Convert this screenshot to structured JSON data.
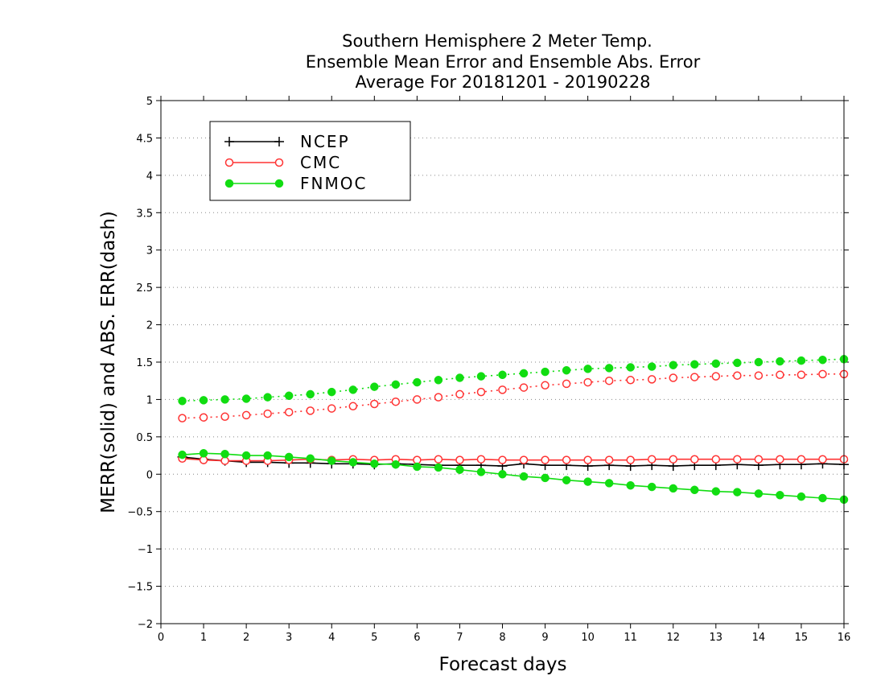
{
  "chart_data": {
    "type": "line",
    "title": [
      "Southern Hemisphere 2 Meter Temp.",
      "Ensemble Mean Error and Ensemble Abs. Error",
      "Average For 20181201 - 20190228"
    ],
    "xlabel": "Forecast days",
    "ylabel": "MERR(solid) and ABS. ERR(dash)",
    "xlim": [
      0,
      16
    ],
    "ylim": [
      -2,
      5
    ],
    "x_ticks": [
      0,
      1,
      2,
      3,
      4,
      5,
      6,
      7,
      8,
      9,
      10,
      11,
      12,
      13,
      14,
      15,
      16
    ],
    "y_ticks": [
      -2,
      -1.5,
      -1,
      -0.5,
      0,
      0.5,
      1,
      1.5,
      2,
      2.5,
      3,
      3.5,
      4,
      4.5,
      5
    ],
    "grid": "horizontal dotted",
    "legend_position": "top-left",
    "x": [
      0.5,
      1,
      1.5,
      2,
      2.5,
      3,
      3.5,
      4,
      4.5,
      5,
      5.5,
      6,
      6.5,
      7,
      7.5,
      8,
      8.5,
      9,
      9.5,
      10,
      10.5,
      11,
      11.5,
      12,
      12.5,
      13,
      13.5,
      14,
      14.5,
      15,
      15.5,
      16
    ],
    "series": [
      {
        "name": "NCEP",
        "color": "#000000",
        "marker": "plus",
        "merr": [
          0.23,
          0.2,
          0.18,
          0.16,
          0.16,
          0.15,
          0.15,
          0.14,
          0.14,
          0.13,
          0.14,
          0.13,
          0.12,
          0.12,
          0.12,
          0.11,
          0.14,
          0.12,
          0.12,
          0.11,
          0.12,
          0.11,
          0.12,
          0.11,
          0.12,
          0.12,
          0.13,
          0.12,
          0.13,
          0.13,
          0.14,
          0.13
        ],
        "abs_err": []
      },
      {
        "name": "CMC",
        "color": "#ff3333",
        "marker": "open-circle",
        "merr": [
          0.21,
          0.19,
          0.18,
          0.18,
          0.18,
          0.19,
          0.2,
          0.19,
          0.2,
          0.19,
          0.2,
          0.19,
          0.2,
          0.19,
          0.2,
          0.19,
          0.19,
          0.19,
          0.19,
          0.19,
          0.19,
          0.19,
          0.2,
          0.2,
          0.2,
          0.2,
          0.2,
          0.2,
          0.2,
          0.2,
          0.2,
          0.2
        ],
        "abs_err": [
          0.75,
          0.76,
          0.77,
          0.79,
          0.81,
          0.83,
          0.85,
          0.88,
          0.91,
          0.94,
          0.97,
          1.0,
          1.03,
          1.07,
          1.1,
          1.13,
          1.16,
          1.19,
          1.21,
          1.23,
          1.25,
          1.26,
          1.27,
          1.29,
          1.3,
          1.31,
          1.32,
          1.32,
          1.33,
          1.33,
          1.34,
          1.34
        ]
      },
      {
        "name": "FNMOC",
        "color": "#11dd11",
        "marker": "filled-circle",
        "merr": [
          0.26,
          0.28,
          0.27,
          0.25,
          0.25,
          0.23,
          0.21,
          0.18,
          0.16,
          0.14,
          0.13,
          0.1,
          0.09,
          0.06,
          0.03,
          0.0,
          -0.03,
          -0.05,
          -0.08,
          -0.1,
          -0.12,
          -0.15,
          -0.17,
          -0.19,
          -0.21,
          -0.23,
          -0.24,
          -0.26,
          -0.28,
          -0.3,
          -0.32,
          -0.34
        ],
        "abs_err": [
          0.98,
          0.99,
          1.0,
          1.01,
          1.03,
          1.05,
          1.07,
          1.1,
          1.13,
          1.17,
          1.2,
          1.23,
          1.26,
          1.29,
          1.31,
          1.33,
          1.35,
          1.37,
          1.39,
          1.41,
          1.42,
          1.43,
          1.44,
          1.46,
          1.47,
          1.48,
          1.49,
          1.5,
          1.51,
          1.52,
          1.53,
          1.54
        ]
      }
    ]
  }
}
